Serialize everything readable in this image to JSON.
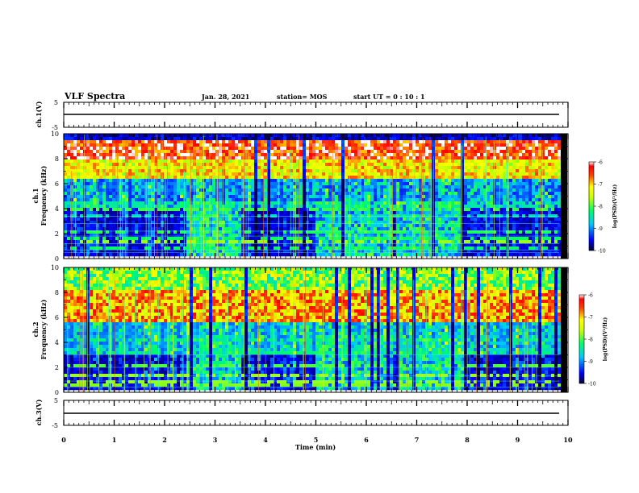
{
  "header": {
    "title": "VLF Spectra",
    "date": "Jan. 28, 2021",
    "station": "station= MOS",
    "start": "start  UT =   0 : 10 : 1"
  },
  "chart_data": [
    {
      "type": "line",
      "panel": "ch1-waveform",
      "ylabel": "ch.1(V)",
      "yticks": [
        "5",
        "-5"
      ],
      "ylim": [
        -5,
        5
      ],
      "x": [
        0,
        9.83
      ],
      "values": [
        0,
        0
      ]
    },
    {
      "type": "heatmap",
      "panel": "ch1-spectrogram",
      "ylabel_lines": [
        "ch.1",
        "Frequency (kHz)"
      ],
      "ylim": [
        0,
        10
      ],
      "yticks": [
        "0",
        "2",
        "4",
        "6",
        "8",
        "10"
      ],
      "xlim": [
        0,
        10
      ],
      "colorbar": {
        "label": "log(PSD)(V²/Hz)",
        "ticks": [
          "-6",
          "-7",
          "-8",
          "-9",
          "-10"
        ],
        "range": [
          -10,
          -6
        ]
      }
    },
    {
      "type": "heatmap",
      "panel": "ch2-spectrogram",
      "ylabel_lines": [
        "ch.2",
        "Frequency (kHz)"
      ],
      "ylim": [
        0,
        10
      ],
      "yticks": [
        "0",
        "2",
        "4",
        "6",
        "8",
        "10"
      ],
      "xlim": [
        0,
        10
      ],
      "colorbar": {
        "label": "log(PSD)(V²/Hz)",
        "ticks": [
          "-6",
          "-7",
          "-8",
          "-9",
          "-10"
        ],
        "range": [
          -10,
          -6
        ]
      }
    },
    {
      "type": "line",
      "panel": "ch3-waveform",
      "ylabel": "ch.3(V)",
      "yticks": [
        "5",
        "-5"
      ],
      "ylim": [
        -5,
        5
      ],
      "x": [
        0,
        9.83
      ],
      "values": [
        0,
        0
      ]
    }
  ],
  "xaxis": {
    "label": "Time  (min)",
    "ticks": [
      "0",
      "1",
      "2",
      "3",
      "4",
      "5",
      "6",
      "7",
      "8",
      "9",
      "10"
    ]
  }
}
